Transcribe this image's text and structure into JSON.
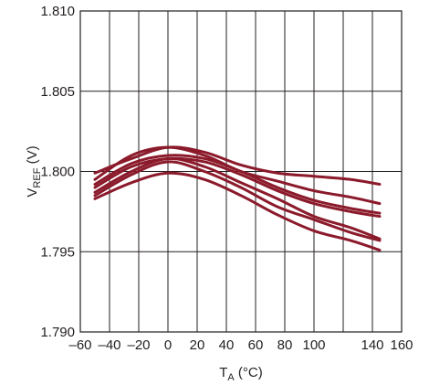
{
  "chart_data": {
    "type": "line",
    "title": "",
    "xlabel": {
      "main": "T",
      "sub": "A",
      "unit": " (°C)"
    },
    "ylabel": {
      "main": "V",
      "sub": "REF",
      "unit": " (V)"
    },
    "xlim": [
      -60,
      160
    ],
    "ylim": [
      1.79,
      1.81
    ],
    "xticks": [
      -60,
      -40,
      -20,
      0,
      20,
      40,
      60,
      80,
      100,
      140,
      160
    ],
    "xtick_labels": [
      "–60",
      "–40",
      "–20",
      "0",
      "20",
      "40",
      "60",
      "80",
      "100",
      "140",
      "160"
    ],
    "x_gridlines": [
      -60,
      -40,
      -20,
      0,
      20,
      40,
      60,
      80,
      100,
      120,
      140,
      160
    ],
    "yticks": [
      1.79,
      1.795,
      1.8,
      1.805,
      1.81
    ],
    "ytick_labels": [
      "1.790",
      "1.795",
      "1.800",
      "1.805",
      "1.810"
    ],
    "grid": true,
    "line_color": "#8b1a2b",
    "x": [
      -50,
      -25,
      0,
      25,
      50,
      75,
      100,
      125,
      145
    ],
    "series": [
      {
        "values": [
          1.7999,
          1.8008,
          1.8015,
          1.8012,
          1.8004,
          1.7999,
          1.7997,
          1.7995,
          1.7992
        ]
      },
      {
        "values": [
          1.7995,
          1.801,
          1.8015,
          1.801,
          1.8,
          1.7994,
          1.7988,
          1.7984,
          1.798
        ]
      },
      {
        "values": [
          1.7992,
          1.8005,
          1.801,
          1.8008,
          1.8,
          1.799,
          1.7982,
          1.7977,
          1.7974
        ]
      },
      {
        "values": [
          1.799,
          1.8003,
          1.8008,
          1.8006,
          1.7998,
          1.7988,
          1.798,
          1.7975,
          1.7972
        ]
      },
      {
        "values": [
          1.7987,
          1.8,
          1.8008,
          1.8003,
          1.7993,
          1.7983,
          1.7972,
          1.7965,
          1.7958
        ]
      },
      {
        "values": [
          1.7985,
          1.7998,
          1.8006,
          1.8,
          1.799,
          1.7978,
          1.797,
          1.7962,
          1.7957
        ]
      },
      {
        "values": [
          1.7983,
          1.7993,
          1.7999,
          1.7995,
          1.7985,
          1.7973,
          1.7963,
          1.7957,
          1.7951
        ]
      }
    ]
  }
}
